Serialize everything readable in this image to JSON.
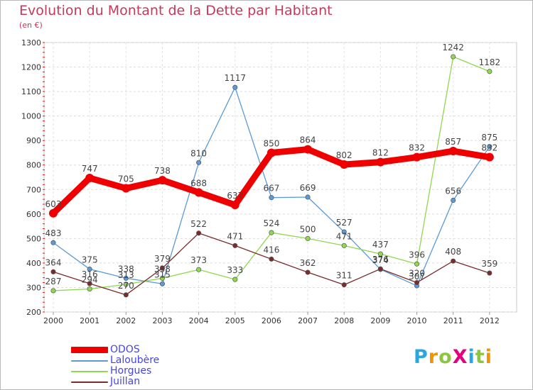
{
  "title": "Evolution du Montant de la Dette par Habitant",
  "subtitle": "(en €)",
  "logo": {
    "text": "ProXiti",
    "letters": [
      "P",
      "r",
      "o",
      "X",
      "i",
      "t",
      "i"
    ],
    "colors": [
      "#2aa7e0",
      "#f29400",
      "#8cc63f",
      "#e6007e",
      "#2aa7e0",
      "#8cc63f",
      "#f29400"
    ]
  },
  "chart_data": {
    "type": "line",
    "title": "Evolution du Montant de la Dette par Habitant",
    "subtitle": "(en €)",
    "x": [
      "2000",
      "2001",
      "2002",
      "2003",
      "2004",
      "2005",
      "2006",
      "2007",
      "2008",
      "2009",
      "2010",
      "2011",
      "2012"
    ],
    "ylim": [
      200,
      1300
    ],
    "yticks": [
      200,
      300,
      400,
      500,
      600,
      700,
      800,
      900,
      1000,
      1100,
      1200,
      1300
    ],
    "grid": true,
    "legend": "bottom-left",
    "series": [
      {
        "name": "ODOS",
        "color": "#ee0000",
        "values": [
          603,
          747,
          705,
          738,
          688,
          637,
          850,
          864,
          802,
          812,
          832,
          857,
          832
        ]
      },
      {
        "name": "Laloubère",
        "color": "#5b9ad5",
        "values": [
          483,
          375,
          338,
          315,
          810,
          1117,
          667,
          669,
          527,
          374,
          307,
          656,
          875
        ]
      },
      {
        "name": "Horgues",
        "color": "#8fd84f",
        "values": [
          287,
          294,
          313,
          338,
          373,
          333,
          524,
          500,
          471,
          437,
          396,
          1242,
          1182
        ]
      },
      {
        "name": "Juillan",
        "color": "#7a2b2b",
        "values": [
          364,
          316,
          270,
          379,
          522,
          471,
          416,
          362,
          311,
          376,
          320,
          408,
          359
        ]
      }
    ]
  }
}
